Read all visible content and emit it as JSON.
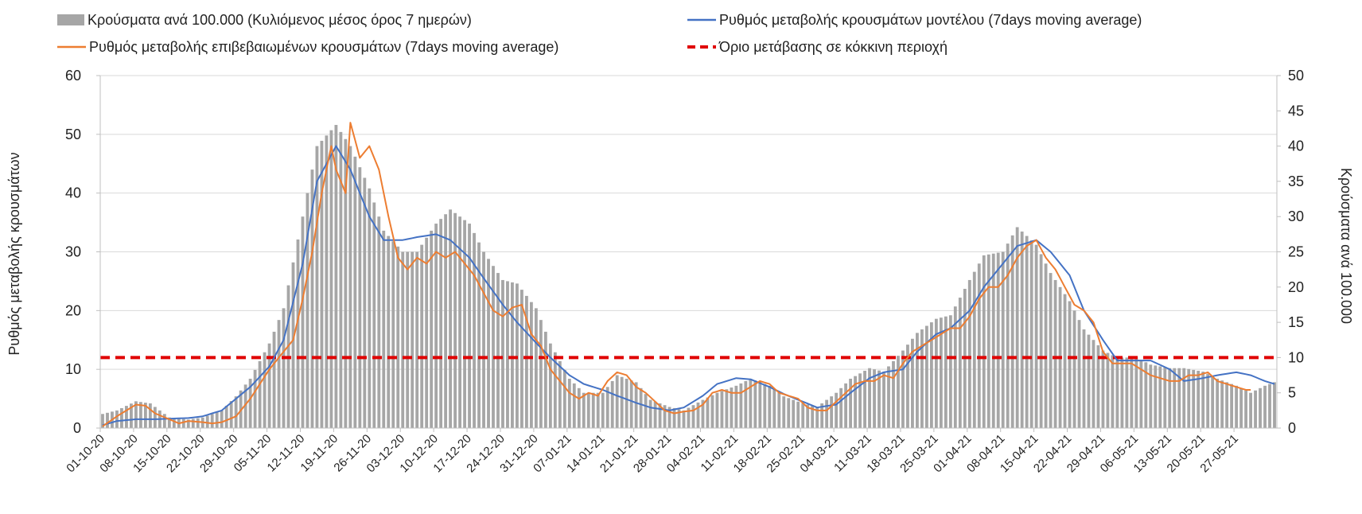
{
  "chart_data": {
    "type": "bar",
    "legend": {
      "placement": "top",
      "items": [
        {
          "key": "bars",
          "label": "Κρούσματα ανά 100.000 (Κυλιόμενος μέσος όρος 7 ημερών)",
          "color": "#a6a6a6",
          "marker": "bar"
        },
        {
          "key": "model",
          "label": "Ρυθμός μεταβολής κρουσμάτων μοντέλου (7days moving average)",
          "color": "#4472c4",
          "marker": "line"
        },
        {
          "key": "confirmed",
          "label": "Ρυθμός μεταβολής επιβεβαιωμένων κρουσμάτων (7days moving average)",
          "color": "#ed7d31",
          "marker": "line"
        },
        {
          "key": "threshold",
          "label": "Όριο μετάβασης σε κόκκινη περιοχή",
          "color": "#e00000",
          "marker": "dash"
        }
      ]
    },
    "y_left": {
      "label": "Ρυθμός μεταβολής κρουσμάτων",
      "min": 0,
      "max": 60,
      "ticks": [
        "0",
        "10",
        "20",
        "30",
        "40",
        "50",
        "60"
      ]
    },
    "y_right": {
      "label": "Κρούσματα ανά 100.000",
      "min": 0,
      "max": 50,
      "ticks": [
        "0",
        "5",
        "10",
        "15",
        "20",
        "25",
        "30",
        "35",
        "40",
        "45",
        "50"
      ]
    },
    "x_tick_labels": [
      "01-10-20",
      "08-10-20",
      "15-10-20",
      "22-10-20",
      "29-10-20",
      "05-11-20",
      "12-11-20",
      "19-11-20",
      "26-11-20",
      "03-12-20",
      "10-12-20",
      "17-12-20",
      "24-12-20",
      "31-12-20",
      "07-01-21",
      "14-01-21",
      "21-01-21",
      "28-01-21",
      "04-02-21",
      "11-02-21",
      "18-02-21",
      "25-02-21",
      "04-03-21",
      "11-03-21",
      "18-03-21",
      "25-03-21",
      "01-04-21",
      "08-04-21",
      "15-04-21",
      "22-04-21",
      "29-04-21",
      "06-05-21",
      "13-05-21",
      "20-05-21",
      "27-05-21"
    ],
    "days_total": 247,
    "grid": true,
    "bar_anchors_right_axis": [
      [
        0,
        2
      ],
      [
        3,
        2.5
      ],
      [
        7,
        3.8
      ],
      [
        10,
        3.5
      ],
      [
        14,
        1.5
      ],
      [
        18,
        1.2
      ],
      [
        21,
        1.5
      ],
      [
        25,
        2.5
      ],
      [
        28,
        4.5
      ],
      [
        31,
        7
      ],
      [
        35,
        12
      ],
      [
        38,
        17
      ],
      [
        42,
        30
      ],
      [
        45,
        40
      ],
      [
        49,
        43
      ],
      [
        52,
        40
      ],
      [
        56,
        34
      ],
      [
        59,
        28
      ],
      [
        63,
        25
      ],
      [
        66,
        25
      ],
      [
        70,
        29
      ],
      [
        73,
        31
      ],
      [
        77,
        29
      ],
      [
        80,
        25
      ],
      [
        84,
        21
      ],
      [
        87,
        20.5
      ],
      [
        91,
        17
      ],
      [
        94,
        12
      ],
      [
        98,
        7
      ],
      [
        101,
        5
      ],
      [
        105,
        5
      ],
      [
        108,
        7.5
      ],
      [
        112,
        6.5
      ],
      [
        115,
        4
      ],
      [
        119,
        3
      ],
      [
        122,
        2.5
      ],
      [
        126,
        4
      ],
      [
        129,
        5
      ],
      [
        133,
        6
      ],
      [
        136,
        7
      ],
      [
        140,
        6
      ],
      [
        143,
        4.5
      ],
      [
        147,
        3.5
      ],
      [
        150,
        3
      ],
      [
        154,
        5
      ],
      [
        157,
        7
      ],
      [
        161,
        8.5
      ],
      [
        164,
        8
      ],
      [
        168,
        11
      ],
      [
        171,
        13.5
      ],
      [
        175,
        15.5
      ],
      [
        178,
        16
      ],
      [
        182,
        21
      ],
      [
        185,
        24.5
      ],
      [
        189,
        25
      ],
      [
        192,
        28.5
      ],
      [
        196,
        26
      ],
      [
        199,
        22
      ],
      [
        203,
        18
      ],
      [
        206,
        14
      ],
      [
        210,
        11
      ],
      [
        213,
        10
      ],
      [
        217,
        10
      ],
      [
        220,
        9
      ],
      [
        224,
        8.5
      ],
      [
        227,
        8.5
      ],
      [
        231,
        8
      ],
      [
        234,
        7
      ],
      [
        238,
        6
      ],
      [
        241,
        5
      ],
      [
        244,
        6
      ],
      [
        246,
        6.5
      ]
    ],
    "model_anchors_left_axis": [
      [
        0,
        0.5
      ],
      [
        3,
        1.2
      ],
      [
        7,
        1.5
      ],
      [
        11,
        1.5
      ],
      [
        14,
        1.6
      ],
      [
        18,
        1.7
      ],
      [
        21,
        2
      ],
      [
        25,
        3
      ],
      [
        28,
        5
      ],
      [
        31,
        7
      ],
      [
        35,
        10.5
      ],
      [
        38,
        15
      ],
      [
        42,
        28
      ],
      [
        45,
        42
      ],
      [
        49,
        48
      ],
      [
        52,
        44
      ],
      [
        56,
        36
      ],
      [
        59,
        32
      ],
      [
        63,
        32
      ],
      [
        66,
        32.5
      ],
      [
        70,
        33
      ],
      [
        73,
        32
      ],
      [
        77,
        29
      ],
      [
        80,
        25.5
      ],
      [
        84,
        21
      ],
      [
        87,
        18
      ],
      [
        91,
        14.5
      ],
      [
        94,
        12
      ],
      [
        98,
        9
      ],
      [
        101,
        7.5
      ],
      [
        105,
        6.5
      ],
      [
        108,
        5.5
      ],
      [
        112,
        4.3
      ],
      [
        115,
        3.5
      ],
      [
        119,
        3
      ],
      [
        122,
        3.5
      ],
      [
        126,
        5.5
      ],
      [
        129,
        7.5
      ],
      [
        133,
        8.5
      ],
      [
        136,
        8.3
      ],
      [
        140,
        7
      ],
      [
        143,
        5.8
      ],
      [
        147,
        4.5
      ],
      [
        150,
        3.5
      ],
      [
        154,
        4
      ],
      [
        157,
        6
      ],
      [
        161,
        8.5
      ],
      [
        164,
        9.5
      ],
      [
        168,
        10
      ],
      [
        171,
        13
      ],
      [
        175,
        16
      ],
      [
        178,
        17
      ],
      [
        182,
        20
      ],
      [
        185,
        24
      ],
      [
        189,
        28
      ],
      [
        192,
        31
      ],
      [
        196,
        32
      ],
      [
        199,
        30
      ],
      [
        203,
        26
      ],
      [
        206,
        20
      ],
      [
        210,
        15
      ],
      [
        213,
        11.5
      ],
      [
        217,
        11.5
      ],
      [
        220,
        11.5
      ],
      [
        224,
        10
      ],
      [
        227,
        8
      ],
      [
        231,
        8.5
      ],
      [
        234,
        9
      ],
      [
        238,
        9.5
      ],
      [
        241,
        9
      ],
      [
        244,
        8
      ],
      [
        246,
        7.5
      ]
    ],
    "confirmed_anchors_left_axis": [
      [
        0,
        0.3
      ],
      [
        3,
        2
      ],
      [
        7,
        4
      ],
      [
        9,
        3.8
      ],
      [
        11,
        2.5
      ],
      [
        14,
        1.5
      ],
      [
        16,
        0.8
      ],
      [
        18,
        1.2
      ],
      [
        21,
        1
      ],
      [
        23,
        0.8
      ],
      [
        25,
        1
      ],
      [
        28,
        2
      ],
      [
        31,
        5
      ],
      [
        35,
        10
      ],
      [
        38,
        13
      ],
      [
        40,
        15
      ],
      [
        42,
        22
      ],
      [
        44,
        30
      ],
      [
        46,
        40
      ],
      [
        48,
        48
      ],
      [
        49,
        44
      ],
      [
        51,
        40
      ],
      [
        52,
        52
      ],
      [
        54,
        46
      ],
      [
        56,
        48
      ],
      [
        58,
        44
      ],
      [
        60,
        36
      ],
      [
        62,
        29
      ],
      [
        64,
        27
      ],
      [
        66,
        29
      ],
      [
        68,
        28
      ],
      [
        70,
        30
      ],
      [
        72,
        29
      ],
      [
        74,
        30
      ],
      [
        76,
        28
      ],
      [
        78,
        26
      ],
      [
        80,
        23
      ],
      [
        82,
        20
      ],
      [
        84,
        19
      ],
      [
        86,
        20.5
      ],
      [
        88,
        21
      ],
      [
        90,
        16
      ],
      [
        92,
        14
      ],
      [
        94,
        10
      ],
      [
        96,
        8
      ],
      [
        98,
        6
      ],
      [
        100,
        5
      ],
      [
        102,
        6
      ],
      [
        104,
        5.5
      ],
      [
        106,
        8
      ],
      [
        108,
        9.5
      ],
      [
        110,
        9
      ],
      [
        112,
        7
      ],
      [
        114,
        6
      ],
      [
        116,
        4.5
      ],
      [
        118,
        3
      ],
      [
        120,
        2.5
      ],
      [
        122,
        2.8
      ],
      [
        124,
        3
      ],
      [
        126,
        4
      ],
      [
        128,
        6
      ],
      [
        130,
        6.5
      ],
      [
        132,
        6
      ],
      [
        134,
        6
      ],
      [
        136,
        7
      ],
      [
        138,
        8
      ],
      [
        140,
        7.5
      ],
      [
        142,
        6
      ],
      [
        144,
        5.5
      ],
      [
        146,
        5
      ],
      [
        148,
        3.5
      ],
      [
        150,
        3
      ],
      [
        152,
        3
      ],
      [
        154,
        4.5
      ],
      [
        156,
        6
      ],
      [
        158,
        7.5
      ],
      [
        160,
        8
      ],
      [
        162,
        8
      ],
      [
        164,
        9
      ],
      [
        166,
        8.5
      ],
      [
        168,
        11
      ],
      [
        170,
        13
      ],
      [
        172,
        14
      ],
      [
        174,
        15
      ],
      [
        176,
        16
      ],
      [
        178,
        17
      ],
      [
        180,
        17
      ],
      [
        182,
        19
      ],
      [
        184,
        22
      ],
      [
        186,
        24
      ],
      [
        188,
        24
      ],
      [
        190,
        26
      ],
      [
        192,
        29
      ],
      [
        194,
        31
      ],
      [
        196,
        32
      ],
      [
        198,
        29
      ],
      [
        200,
        27
      ],
      [
        202,
        24
      ],
      [
        204,
        21
      ],
      [
        206,
        20
      ],
      [
        208,
        18
      ],
      [
        210,
        13
      ],
      [
        212,
        11
      ],
      [
        214,
        11
      ],
      [
        216,
        11
      ],
      [
        218,
        10
      ],
      [
        220,
        9
      ],
      [
        222,
        8.5
      ],
      [
        224,
        8
      ],
      [
        226,
        8
      ],
      [
        228,
        9
      ],
      [
        230,
        9
      ],
      [
        232,
        9.5
      ],
      [
        234,
        8
      ],
      [
        236,
        7.5
      ],
      [
        238,
        7
      ],
      [
        240,
        6.5
      ],
      [
        241,
        6.5
      ]
    ],
    "threshold_left_axis": 12,
    "threshold_right_axis": 10
  }
}
